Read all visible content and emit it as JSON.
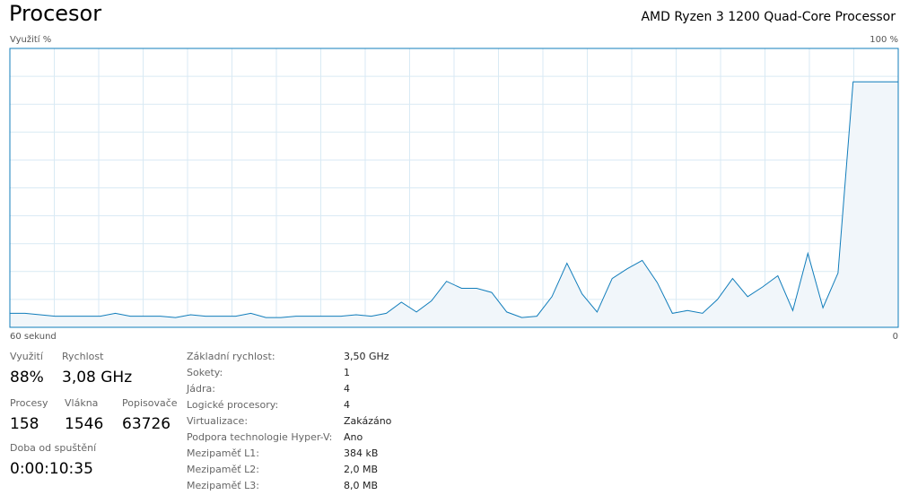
{
  "header": {
    "title": "Procesor",
    "cpu_name": "AMD Ryzen 3 1200 Quad-Core Processor"
  },
  "chart_data": {
    "type": "area",
    "y_label": "Využití %",
    "x_start_label": "60 sekund",
    "x_end_label": "0",
    "ylim": [
      0,
      100
    ],
    "yticks": [
      {
        "value": 100,
        "label": "100 %"
      }
    ],
    "grid_rows": 10,
    "grid_cols": 20,
    "color": "#117dbb",
    "fill": "#f1f6fa",
    "grid_color": "#d9eaf4",
    "values": [
      5,
      5,
      4.5,
      4,
      4,
      4,
      4,
      5,
      4,
      4,
      4,
      3.5,
      4.5,
      4,
      4,
      4,
      5,
      3.5,
      3.5,
      4,
      4,
      4,
      4,
      4.5,
      4,
      5,
      9,
      5.5,
      9.5,
      16.5,
      14,
      14,
      12.5,
      5.5,
      3.5,
      4,
      11,
      23,
      12,
      5.5,
      17.5,
      21,
      24,
      16,
      5,
      6,
      5,
      10,
      17.5,
      11,
      14.5,
      18.5,
      6,
      26.5,
      7,
      19.5,
      88,
      88,
      88,
      88
    ]
  },
  "stats": [
    {
      "label": "Využití",
      "value": "88%"
    },
    {
      "label": "Rychlost",
      "value": "3,08 GHz"
    },
    {
      "label": "Procesy",
      "value": "158"
    },
    {
      "label": "Vlákna",
      "value": "1546"
    },
    {
      "label": "Popisovače",
      "value": "63726"
    },
    {
      "label": "Doba od spuštění",
      "value": "0:00:10:35"
    }
  ],
  "details": [
    [
      "Základní rychlost:",
      "3,50 GHz"
    ],
    [
      "Sokety:",
      "1"
    ],
    [
      "Jádra:",
      "4"
    ],
    [
      "Logické procesory:",
      "4"
    ],
    [
      "Virtualizace:",
      "Zakázáno"
    ],
    [
      "Podpora technologie Hyper-V:",
      "Ano"
    ],
    [
      "Mezipaměť L1:",
      "384 kB"
    ],
    [
      "Mezipaměť L2:",
      "2,0 MB"
    ],
    [
      "Mezipaměť L3:",
      "8,0 MB"
    ]
  ]
}
